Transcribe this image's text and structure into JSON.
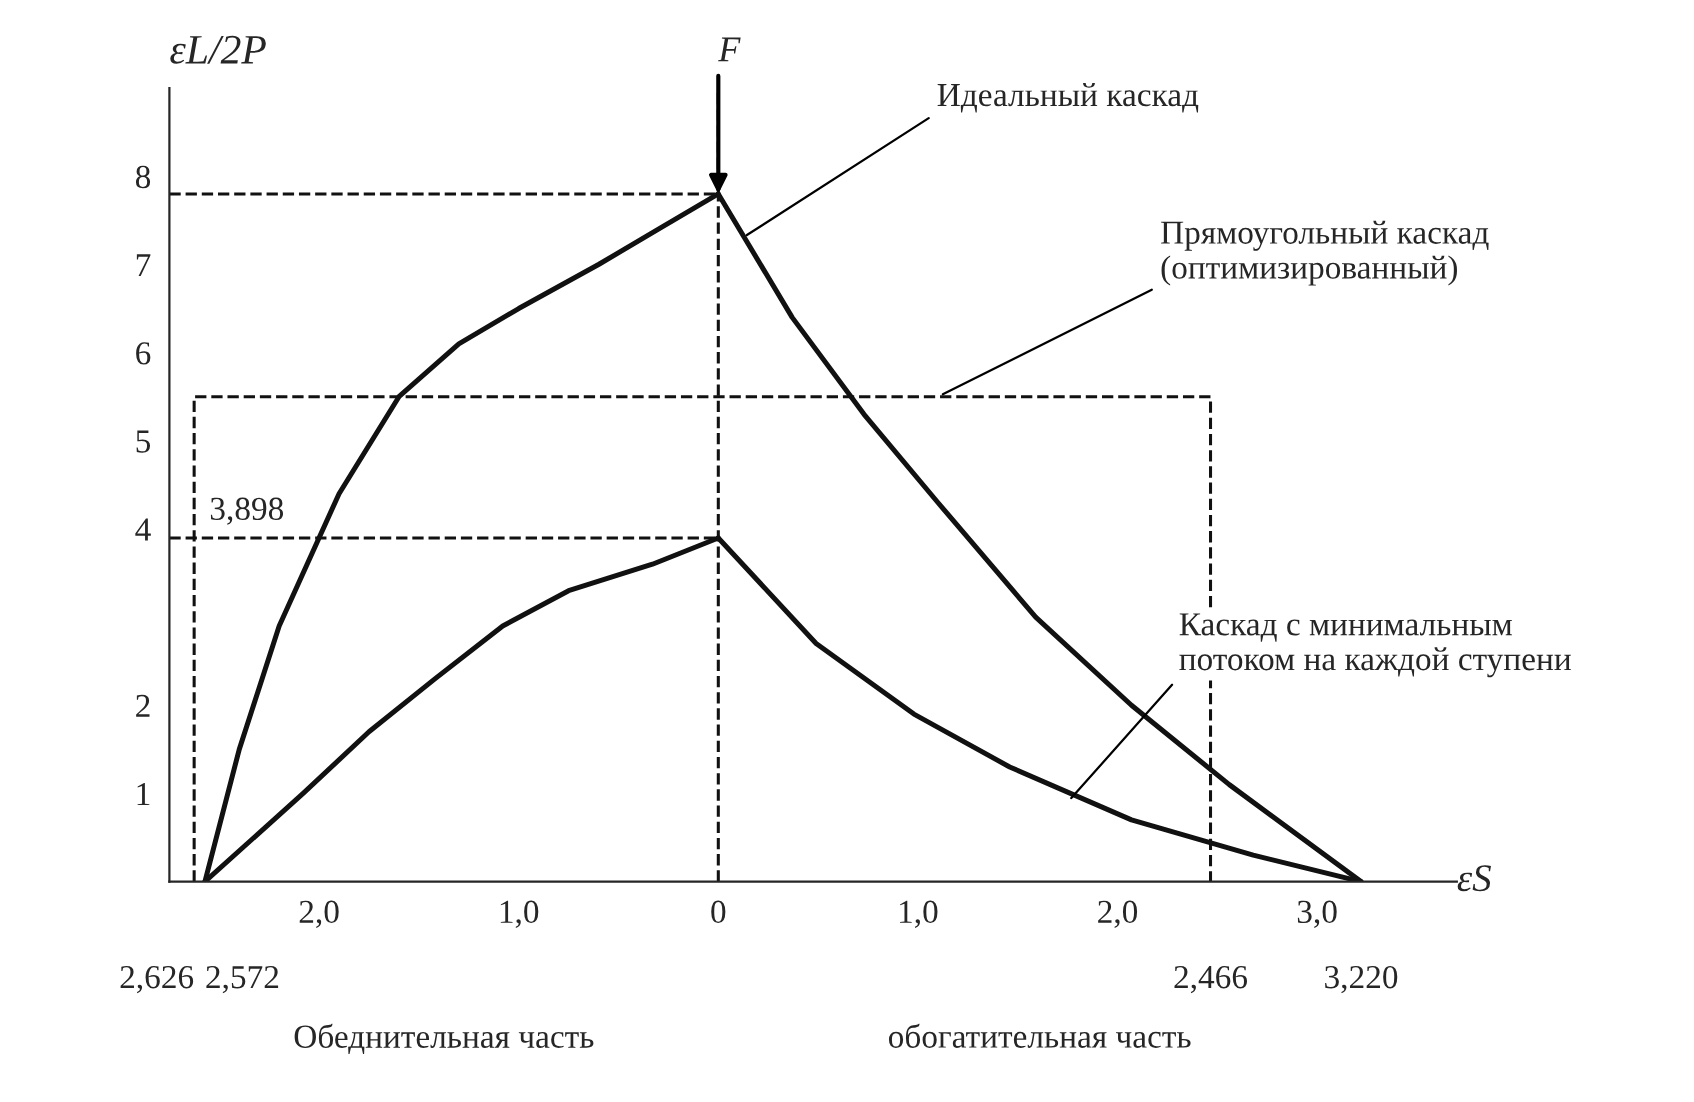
{
  "chart_data": {
    "type": "line",
    "xlabel": "εS",
    "ylabel": "εL/2P",
    "xlim": [
      -2.75,
      3.7
    ],
    "ylim": [
      0,
      9
    ],
    "xticks": [
      {
        "value": -2,
        "label": "2,0"
      },
      {
        "value": -1,
        "label": "1,0"
      },
      0,
      {
        "value": 1,
        "label": "1,0"
      },
      {
        "value": 2,
        "label": "2,0"
      },
      {
        "value": 3,
        "label": "3,0"
      }
    ],
    "yticks": [
      1,
      2,
      4,
      5,
      6,
      7,
      8
    ],
    "grid": false,
    "legend": false,
    "marker": "none",
    "series": [
      {
        "color": "#111111",
        "line_style": "solid",
        "x": [
          -2.572,
          -2.4,
          -2.2,
          -1.9,
          -1.6,
          -1.3,
          -1.0,
          -0.6,
          -0.3,
          0
        ],
        "values": [
          0,
          1.5,
          2.9,
          4.4,
          5.5,
          6.1,
          6.5,
          7.0,
          7.4,
          7.8
        ]
      },
      {
        "color": "#111111",
        "line_style": "solid",
        "x": [
          0,
          0.37,
          0.73,
          1.1,
          1.59,
          2.07,
          2.56,
          3.22
        ],
        "values": [
          7.8,
          6.4,
          5.3,
          4.3,
          3.0,
          2.0,
          1.1,
          0
        ]
      },
      {
        "color": "#111111",
        "line_style": "solid",
        "x": [
          -2.572,
          -2.08,
          -1.75,
          -1.42,
          -1.08,
          -0.75,
          -0.33,
          0
        ],
        "values": [
          0,
          1.0,
          1.7,
          2.3,
          2.9,
          3.3,
          3.6,
          3.898
        ]
      },
      {
        "color": "#111111",
        "line_style": "solid",
        "x": [
          0,
          0.49,
          0.98,
          1.46,
          2.07,
          2.68,
          3.22
        ],
        "values": [
          3.898,
          2.7,
          1.9,
          1.3,
          0.7,
          0.3,
          0
        ]
      },
      {
        "color": "#111111",
        "line_style": "dashed",
        "x": [
          -2.626,
          -2.626,
          2.466,
          2.466
        ],
        "values": [
          0,
          5.5,
          5.5,
          0
        ]
      },
      {
        "color": "#111111",
        "line_style": "dashed",
        "x": [
          -2.75,
          0
        ],
        "values": [
          7.8,
          7.8
        ]
      },
      {
        "color": "#111111",
        "line_style": "dashed",
        "x": [
          -2.75,
          0
        ],
        "values": [
          3.898,
          3.898
        ]
      }
    ],
    "ref_lines": [
      {
        "axis": "x",
        "value": 0,
        "line_style": "dashed",
        "color": "#111111"
      }
    ],
    "annotations": [
      {
        "text": "F",
        "x": 0,
        "y": 7.8
      },
      {
        "text": "Идеальный каскад",
        "x": 0.12,
        "y": 7.3
      },
      {
        "text": "Прямоугольный каскад\n(оптимизированный)",
        "x": 1.1,
        "y": 5.5
      },
      {
        "text": "Каскад с минимальным\nпотоком на каждой ступени",
        "x": 1.75,
        "y": 0.9
      },
      {
        "text": "3,898",
        "x": -2.55,
        "y": 3.898
      },
      {
        "text": "2,626",
        "x": -2.626,
        "y": 0
      },
      {
        "text": "2,572",
        "x": -2.572,
        "y": 0
      },
      {
        "text": "2,466",
        "x": 2.466,
        "y": 0
      },
      {
        "text": "3,220",
        "x": 3.22,
        "y": 0
      },
      "Обеднительная часть",
      "обогатительная часть"
    ]
  }
}
